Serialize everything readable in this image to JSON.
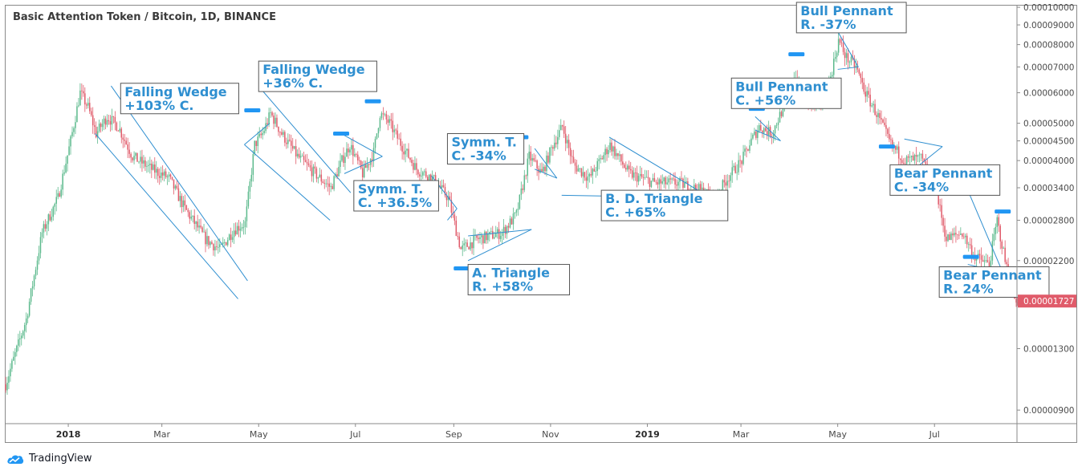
{
  "chart_title": "Basic Attention Token / Bitcoin, 1D, BINANCE",
  "brand": {
    "name": "TradingView",
    "icon": "tradingview-cloud-icon"
  },
  "colors": {
    "up": "#5bb98c",
    "down": "#e05b6a",
    "pattern_line": "#2f8fd0",
    "label_text": "#2f8fd0",
    "label_border": "#555555",
    "marker": "#2196f3",
    "price_badge": "#e05b6a",
    "axis_text": "#4a4a4a"
  },
  "chart_data": {
    "type": "candlestick",
    "title": "Basic Attention Token / Bitcoin, 1D, BINANCE",
    "y_scale": "log",
    "ylim": [
      8.3e-06,
      0.000101
    ],
    "y_ticks": [
      "0.00010000",
      "0.00009000",
      "0.00008000",
      "0.00007000",
      "0.00006000",
      "0.00005000",
      "0.00004500",
      "0.00004000",
      "0.00003400",
      "0.00002800",
      "0.00002200",
      "0.00001727",
      "0.00001300",
      "0.00000900"
    ],
    "x_ticks": [
      {
        "label": "2018",
        "date": "2018-01-01",
        "bold": true
      },
      {
        "label": "Mar",
        "date": "2018-03-01",
        "bold": false
      },
      {
        "label": "May",
        "date": "2018-05-01",
        "bold": false
      },
      {
        "label": "Jul",
        "date": "2018-07-01",
        "bold": false
      },
      {
        "label": "Sep",
        "date": "2018-09-01",
        "bold": false
      },
      {
        "label": "Nov",
        "date": "2018-11-01",
        "bold": false
      },
      {
        "label": "2019",
        "date": "2019-01-01",
        "bold": true
      },
      {
        "label": "Mar",
        "date": "2019-03-01",
        "bold": false
      },
      {
        "label": "May",
        "date": "2019-05-01",
        "bold": false
      },
      {
        "label": "Jul",
        "date": "2019-07-01",
        "bold": false
      }
    ],
    "xlim": [
      "2017-11-22",
      "2019-08-22"
    ],
    "last_price": "0.00001727",
    "price_path": [
      {
        "date": "2017-11-22",
        "value": 1.05e-05
      },
      {
        "date": "2017-12-05",
        "value": 1.55e-05
      },
      {
        "date": "2017-12-15",
        "value": 2.6e-05
      },
      {
        "date": "2017-12-25",
        "value": 3.2e-05
      },
      {
        "date": "2018-01-02",
        "value": 4.5e-05
      },
      {
        "date": "2018-01-08",
        "value": 6e-05
      },
      {
        "date": "2018-01-13",
        "value": 5.5e-05
      },
      {
        "date": "2018-01-18",
        "value": 4.7e-05
      },
      {
        "date": "2018-01-25",
        "value": 5.2e-05
      },
      {
        "date": "2018-02-01",
        "value": 4.9e-05
      },
      {
        "date": "2018-02-10",
        "value": 4.1e-05
      },
      {
        "date": "2018-02-22",
        "value": 3.8e-05
      },
      {
        "date": "2018-03-05",
        "value": 3.6e-05
      },
      {
        "date": "2018-03-15",
        "value": 3e-05
      },
      {
        "date": "2018-03-28",
        "value": 2.5e-05
      },
      {
        "date": "2018-04-06",
        "value": 2.35e-05
      },
      {
        "date": "2018-04-15",
        "value": 2.65e-05
      },
      {
        "date": "2018-04-22",
        "value": 2.75e-05
      },
      {
        "date": "2018-04-28",
        "value": 4.4e-05
      },
      {
        "date": "2018-05-03",
        "value": 4.7e-05
      },
      {
        "date": "2018-05-08",
        "value": 5.3e-05
      },
      {
        "date": "2018-05-15",
        "value": 4.7e-05
      },
      {
        "date": "2018-05-25",
        "value": 4.1e-05
      },
      {
        "date": "2018-06-05",
        "value": 3.7e-05
      },
      {
        "date": "2018-06-15",
        "value": 3.4e-05
      },
      {
        "date": "2018-06-22",
        "value": 4e-05
      },
      {
        "date": "2018-06-27",
        "value": 4.4e-05
      },
      {
        "date": "2018-07-05",
        "value": 3.7e-05
      },
      {
        "date": "2018-07-12",
        "value": 4.2e-05
      },
      {
        "date": "2018-07-16",
        "value": 5.3e-05
      },
      {
        "date": "2018-07-22",
        "value": 5e-05
      },
      {
        "date": "2018-07-28",
        "value": 4.5e-05
      },
      {
        "date": "2018-08-08",
        "value": 3.8e-05
      },
      {
        "date": "2018-08-18",
        "value": 3.6e-05
      },
      {
        "date": "2018-08-28",
        "value": 3.2e-05
      },
      {
        "date": "2018-09-05",
        "value": 2.35e-05
      },
      {
        "date": "2018-09-15",
        "value": 2.5e-05
      },
      {
        "date": "2018-10-01",
        "value": 2.6e-05
      },
      {
        "date": "2018-10-10",
        "value": 2.9e-05
      },
      {
        "date": "2018-10-18",
        "value": 4.1e-05
      },
      {
        "date": "2018-10-26",
        "value": 3.7e-05
      },
      {
        "date": "2018-11-02",
        "value": 4.4e-05
      },
      {
        "date": "2018-11-08",
        "value": 4.9e-05
      },
      {
        "date": "2018-11-15",
        "value": 3.9e-05
      },
      {
        "date": "2018-11-25",
        "value": 3.6e-05
      },
      {
        "date": "2018-12-08",
        "value": 4.4e-05
      },
      {
        "date": "2018-12-20",
        "value": 3.7e-05
      },
      {
        "date": "2019-01-05",
        "value": 3.5e-05
      },
      {
        "date": "2019-01-20",
        "value": 3.5e-05
      },
      {
        "date": "2019-02-03",
        "value": 3.35e-05
      },
      {
        "date": "2019-02-12",
        "value": 3.2e-05
      },
      {
        "date": "2019-02-20",
        "value": 3.6e-05
      },
      {
        "date": "2019-03-01",
        "value": 4e-05
      },
      {
        "date": "2019-03-07",
        "value": 4.5e-05
      },
      {
        "date": "2019-03-12",
        "value": 4.9e-05
      },
      {
        "date": "2019-03-20",
        "value": 4.7e-05
      },
      {
        "date": "2019-03-28",
        "value": 5.6e-05
      },
      {
        "date": "2019-04-03",
        "value": 6.7e-05
      },
      {
        "date": "2019-04-10",
        "value": 5.8e-05
      },
      {
        "date": "2019-04-18",
        "value": 5.5e-05
      },
      {
        "date": "2019-04-26",
        "value": 6.6e-05
      },
      {
        "date": "2019-05-01",
        "value": 8.2e-05
      },
      {
        "date": "2019-05-06",
        "value": 7.4e-05
      },
      {
        "date": "2019-05-12",
        "value": 7e-05
      },
      {
        "date": "2019-05-18",
        "value": 6e-05
      },
      {
        "date": "2019-05-26",
        "value": 5.2e-05
      },
      {
        "date": "2019-06-03",
        "value": 4.4e-05
      },
      {
        "date": "2019-06-12",
        "value": 4e-05
      },
      {
        "date": "2019-06-22",
        "value": 4.05e-05
      },
      {
        "date": "2019-07-01",
        "value": 3.4e-05
      },
      {
        "date": "2019-07-08",
        "value": 2.5e-05
      },
      {
        "date": "2019-07-18",
        "value": 2.6e-05
      },
      {
        "date": "2019-07-26",
        "value": 2.25e-05
      },
      {
        "date": "2019-08-04",
        "value": 2.15e-05
      },
      {
        "date": "2019-08-09",
        "value": 2.8e-05
      },
      {
        "date": "2019-08-14",
        "value": 2.2e-05
      },
      {
        "date": "2019-08-20",
        "value": 1.75e-05
      }
    ],
    "pattern_lines": [
      {
        "from": {
          "date": "2018-01-28",
          "value": 6.25e-05
        },
        "to": {
          "date": "2018-04-24",
          "value": 1.95e-05
        }
      },
      {
        "from": {
          "date": "2018-01-18",
          "value": 4.7e-05
        },
        "to": {
          "date": "2018-04-18",
          "value": 1.75e-05
        }
      },
      {
        "from": {
          "date": "2018-05-03",
          "value": 6.1e-05
        },
        "to": {
          "date": "2018-06-28",
          "value": 3.3e-05
        }
      },
      {
        "from": {
          "date": "2018-04-22",
          "value": 4.4e-05
        },
        "to": {
          "date": "2018-06-15",
          "value": 2.8e-05
        }
      },
      {
        "from": {
          "date": "2018-04-22",
          "value": 4.4e-05
        },
        "to": {
          "date": "2018-05-08",
          "value": 5e-05
        }
      },
      {
        "from": {
          "date": "2018-06-24",
          "value": 4.65e-05
        },
        "to": {
          "date": "2018-07-18",
          "value": 4.1e-05
        }
      },
      {
        "from": {
          "date": "2018-06-24",
          "value": 3.7e-05
        },
        "to": {
          "date": "2018-07-18",
          "value": 4.1e-05
        }
      },
      {
        "from": {
          "date": "2018-08-18",
          "value": 3.65e-05
        },
        "to": {
          "date": "2018-09-03",
          "value": 3e-05
        }
      },
      {
        "from": {
          "date": "2018-08-28",
          "value": 2.8e-05
        },
        "to": {
          "date": "2018-09-03",
          "value": 3e-05
        }
      },
      {
        "from": {
          "date": "2018-09-10",
          "value": 2.55e-05
        },
        "to": {
          "date": "2018-10-20",
          "value": 2.65e-05
        }
      },
      {
        "from": {
          "date": "2018-09-10",
          "value": 2.2e-05
        },
        "to": {
          "date": "2018-10-20",
          "value": 2.65e-05
        }
      },
      {
        "from": {
          "date": "2018-10-22",
          "value": 4.3e-05
        },
        "to": {
          "date": "2018-11-05",
          "value": 3.6e-05
        }
      },
      {
        "from": {
          "date": "2018-10-22",
          "value": 3.8e-05
        },
        "to": {
          "date": "2018-11-05",
          "value": 3.6e-05
        }
      },
      {
        "from": {
          "date": "2018-12-08",
          "value": 4.6e-05
        },
        "to": {
          "date": "2019-02-10",
          "value": 3.2e-05
        }
      },
      {
        "from": {
          "date": "2018-11-08",
          "value": 3.25e-05
        },
        "to": {
          "date": "2019-02-10",
          "value": 3.2e-05
        }
      },
      {
        "from": {
          "date": "2019-03-10",
          "value": 5.2e-05
        },
        "to": {
          "date": "2019-03-26",
          "value": 4.5e-05
        }
      },
      {
        "from": {
          "date": "2019-03-10",
          "value": 4.8e-05
        },
        "to": {
          "date": "2019-03-26",
          "value": 4.5e-05
        }
      },
      {
        "from": {
          "date": "2019-05-01",
          "value": 8.65e-05
        },
        "to": {
          "date": "2019-05-14",
          "value": 7e-05
        }
      },
      {
        "from": {
          "date": "2019-05-01",
          "value": 6.9e-05
        },
        "to": {
          "date": "2019-05-14",
          "value": 7e-05
        }
      },
      {
        "from": {
          "date": "2019-06-12",
          "value": 4.55e-05
        },
        "to": {
          "date": "2019-07-06",
          "value": 4.35e-05
        }
      },
      {
        "from": {
          "date": "2019-06-20",
          "value": 3.85e-05
        },
        "to": {
          "date": "2019-07-06",
          "value": 4.35e-05
        }
      },
      {
        "from": {
          "date": "2019-07-22",
          "value": 3.35e-05
        },
        "to": {
          "date": "2019-08-13",
          "value": 2.05e-05
        }
      },
      {
        "from": {
          "date": "2019-07-22",
          "value": 2.15e-05
        },
        "to": {
          "date": "2019-08-13",
          "value": 2.05e-05
        }
      }
    ],
    "markers": [
      {
        "date": "2018-04-27",
        "value": 5.4e-05
      },
      {
        "date": "2018-06-22",
        "value": 4.7e-05
      },
      {
        "date": "2018-07-12",
        "value": 5.7e-05
      },
      {
        "date": "2018-09-06",
        "value": 2.1e-05
      },
      {
        "date": "2018-10-13",
        "value": 4.6e-05
      },
      {
        "date": "2019-03-11",
        "value": 5.45e-05
      },
      {
        "date": "2019-04-05",
        "value": 7.55e-05
      },
      {
        "date": "2019-06-01",
        "value": 4.35e-05
      },
      {
        "date": "2019-07-24",
        "value": 2.25e-05
      },
      {
        "date": "2019-08-13",
        "value": 2.95e-05
      }
    ],
    "annotations": [
      {
        "lines": [
          "Falling Wedge",
          " +103% C."
        ],
        "box": {
          "date": "2018-02-03",
          "value": 6.35e-05
        }
      },
      {
        "lines": [
          "Falling Wedge",
          "+36% C."
        ],
        "box": {
          "date": "2018-05-01",
          "value": 7.25e-05
        }
      },
      {
        "lines": [
          "Symm. T.",
          "C. +36.5%"
        ],
        "box": {
          "date": "2018-06-30",
          "value": 3.55e-05
        }
      },
      {
        "lines": [
          "Symm. T.",
          "C. -34%"
        ],
        "box": {
          "date": "2018-08-28",
          "value": 4.7e-05
        }
      },
      {
        "lines": [
          "A. Triangle",
          "R. +58%"
        ],
        "box": {
          "date": "2018-09-10",
          "value": 2.15e-05
        }
      },
      {
        "lines": [
          "B. D. Triangle",
          "C. +65%"
        ],
        "box": {
          "date": "2018-12-03",
          "value": 3.35e-05
        }
      },
      {
        "lines": [
          "Bull Pennant",
          "C. +56%"
        ],
        "box": {
          "date": "2019-02-23",
          "value": 6.55e-05
        }
      },
      {
        "lines": [
          "Bull Pennant",
          "R. -37%"
        ],
        "box": {
          "date": "2019-04-05",
          "value": 0.000103
        }
      },
      {
        "lines": [
          "Bear Pennant",
          "C. -34%"
        ],
        "box": {
          "date": "2019-06-03",
          "value": 3.9e-05
        }
      },
      {
        "lines": [
          "Bear Pennant",
          "R. 24%"
        ],
        "box": {
          "date": "2019-07-04",
          "value": 2.12e-05
        }
      }
    ]
  }
}
